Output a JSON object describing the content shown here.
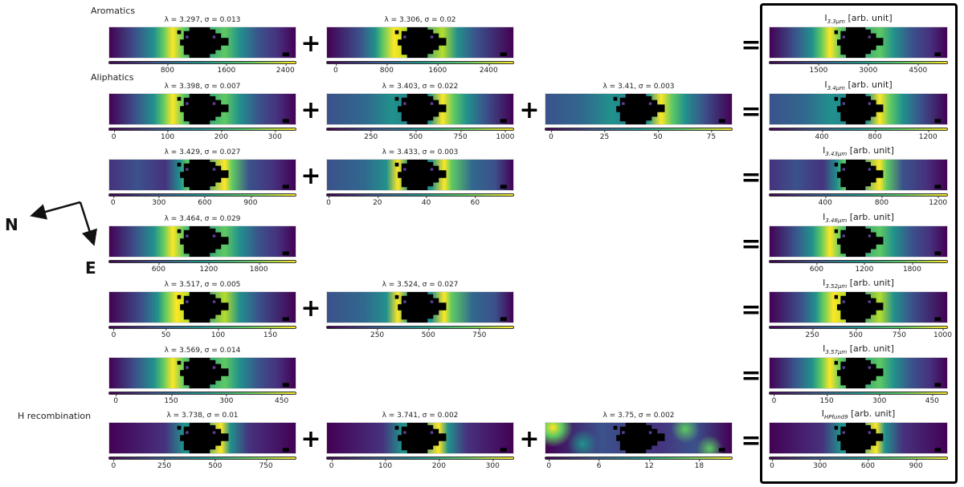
{
  "section_labels": {
    "aromatics": "Aromatics",
    "aliphatics": "Aliphatics",
    "h_recombination": "H recombination"
  },
  "compass": {
    "north": "N",
    "east": "E"
  },
  "operators": {
    "plus": "+",
    "equals": "="
  },
  "rows": [
    {
      "components": [
        {
          "title": "λ = 3.297, σ = 0.013",
          "ticks": [
            800,
            1600,
            2400
          ],
          "range": [
            0,
            2550
          ]
        },
        {
          "title": "λ = 3.306, σ = 0.02",
          "ticks": [
            0,
            800,
            1600,
            2400
          ],
          "range": [
            -150,
            2800
          ]
        }
      ],
      "result": {
        "base": "I",
        "sub": "3.3μm",
        "unit": " [arb. unit]",
        "ticks": [
          1500,
          3000,
          4500
        ],
        "range": [
          0,
          5400
        ]
      }
    },
    {
      "components": [
        {
          "title": "λ = 3.398, σ = 0.007",
          "ticks": [
            0,
            100,
            200,
            300
          ],
          "range": [
            -10,
            340
          ]
        },
        {
          "title": "λ = 3.403, σ = 0.022",
          "ticks": [
            250,
            500,
            750,
            1000
          ],
          "range": [
            0,
            1050
          ]
        },
        {
          "title": "λ = 3.41, σ = 0.003",
          "ticks": [
            0,
            25,
            50,
            75
          ],
          "range": [
            -3,
            85
          ]
        }
      ],
      "result": {
        "base": "I",
        "sub": "3.4μm",
        "unit": " [arb. unit]",
        "ticks": [
          400,
          800,
          1200
        ],
        "range": [
          0,
          1350
        ]
      }
    },
    {
      "components": [
        {
          "title": "λ = 3.429, σ = 0.027",
          "ticks": [
            0,
            300,
            600,
            900
          ],
          "range": [
            -30,
            1200
          ]
        },
        {
          "title": "λ = 3.433, σ = 0.003",
          "ticks": [
            0,
            20,
            40,
            60
          ],
          "range": [
            -1,
            76
          ]
        }
      ],
      "result": {
        "base": "I",
        "sub": "3.43μm",
        "unit": " [arb. unit]",
        "ticks": [
          400,
          800,
          1200
        ],
        "range": [
          0,
          1270
        ]
      }
    },
    {
      "components": [
        {
          "title": "λ = 3.464, σ = 0.029",
          "ticks": [
            600,
            1200,
            1800
          ],
          "range": [
            0,
            2250
          ]
        }
      ],
      "result": {
        "base": "I",
        "sub": "3.46μm",
        "unit": " [arb. unit]",
        "ticks": [
          600,
          1200,
          1800
        ],
        "range": [
          0,
          2250
        ]
      }
    },
    {
      "components": [
        {
          "title": "λ = 3.517, σ = 0.005",
          "ticks": [
            0,
            50,
            100,
            150
          ],
          "range": [
            -5,
            175
          ]
        },
        {
          "title": "λ = 3.524, σ = 0.027",
          "ticks": [
            250,
            500,
            750
          ],
          "range": [
            0,
            920
          ]
        }
      ],
      "result": {
        "base": "I",
        "sub": "3.52μm",
        "unit": " [arb. unit]",
        "ticks": [
          250,
          500,
          750,
          1000
        ],
        "range": [
          0,
          1030
        ]
      }
    },
    {
      "components": [
        {
          "title": "λ = 3.569, σ = 0.014",
          "ticks": [
            0,
            150,
            300,
            450
          ],
          "range": [
            -20,
            490
          ]
        }
      ],
      "result": {
        "base": "I",
        "sub": "3.57μm",
        "unit": " [arb. unit]",
        "ticks": [
          0,
          150,
          300,
          450
        ],
        "range": [
          -15,
          495
        ]
      }
    },
    {
      "components": [
        {
          "title": "λ = 3.738, σ = 0.01",
          "ticks": [
            0,
            250,
            500,
            750
          ],
          "range": [
            -25,
            900
          ]
        },
        {
          "title": "λ = 3.741, σ = 0.002",
          "ticks": [
            0,
            100,
            200,
            300
          ],
          "range": [
            -10,
            340
          ]
        },
        {
          "title": "λ = 3.75, σ = 0.002",
          "ticks": [
            0,
            6,
            12,
            18
          ],
          "range": [
            -0.5,
            22
          ]
        }
      ],
      "result": {
        "base": "I",
        "sub": "HPfund9",
        "unit": " [arb. unit]",
        "ticks": [
          0,
          300,
          600,
          900
        ],
        "range": [
          -20,
          1100
        ]
      }
    }
  ]
}
